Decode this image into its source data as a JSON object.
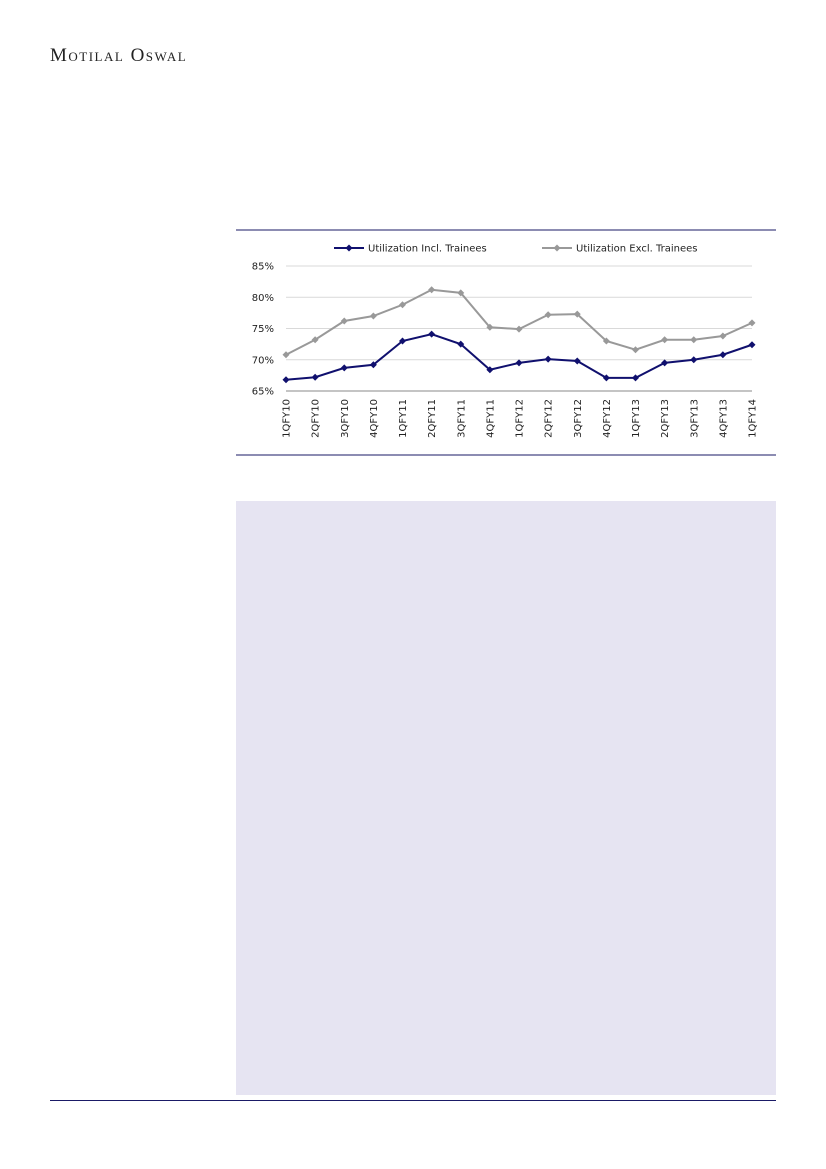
{
  "header": {
    "brand": "Motilal Oswal"
  },
  "chart_data": {
    "type": "line",
    "categories": [
      "1QFY10",
      "2QFY10",
      "3QFY10",
      "4QFY10",
      "1QFY11",
      "2QFY11",
      "3QFY11",
      "4QFY11",
      "1QFY12",
      "2QFY12",
      "3QFY12",
      "4QFY12",
      "1QFY13",
      "2QFY13",
      "3QFY13",
      "4QFY13",
      "1QFY14"
    ],
    "series": [
      {
        "name": "Utilization Incl. Trainees",
        "color": "#10106e",
        "values": [
          66.8,
          67.2,
          68.7,
          69.2,
          73.0,
          74.1,
          72.5,
          68.4,
          69.5,
          70.1,
          69.8,
          67.1,
          67.1,
          69.5,
          70.0,
          70.8,
          72.4
        ]
      },
      {
        "name": "Utilization Excl. Trainees",
        "color": "#999999",
        "values": [
          70.8,
          73.2,
          76.2,
          77.0,
          78.8,
          81.2,
          80.7,
          75.2,
          74.9,
          77.2,
          77.3,
          73.0,
          71.6,
          73.2,
          73.2,
          73.8,
          75.9
        ]
      }
    ],
    "ylim": [
      65,
      85
    ],
    "yticks": [
      {
        "value": 65,
        "label": "65%"
      },
      {
        "value": 70,
        "label": "70%"
      },
      {
        "value": 75,
        "label": "75%"
      },
      {
        "value": 80,
        "label": "80%"
      },
      {
        "value": 85,
        "label": "85%"
      }
    ],
    "grid": true,
    "legend": "top"
  }
}
